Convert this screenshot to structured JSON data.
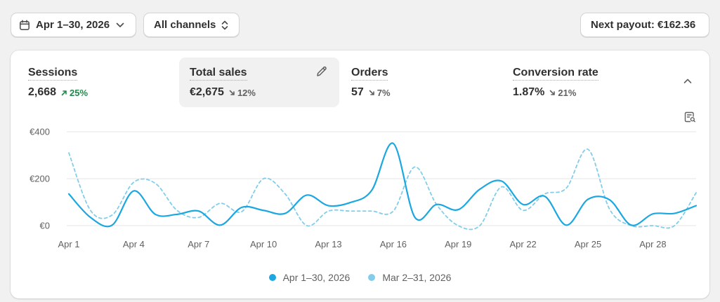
{
  "filters": {
    "date_range": "Apr 1–30, 2026",
    "channel": "All channels",
    "payout": "Next payout: €162.36"
  },
  "metrics": [
    {
      "title": "Sessions",
      "value": "2,668",
      "change": "25%",
      "direction": "up"
    },
    {
      "title": "Total sales",
      "value": "€2,675",
      "change": "12%",
      "direction": "down",
      "selected": true
    },
    {
      "title": "Orders",
      "value": "57",
      "change": "7%",
      "direction": "down"
    },
    {
      "title": "Conversion rate",
      "value": "1.87%",
      "change": "21%",
      "direction": "down"
    }
  ],
  "icons": {
    "date": "calendar-icon",
    "date_toggle": "chevron-down-icon",
    "channel_toggle": "select-arrows-icon",
    "edit": "pencil-icon",
    "collapse": "chevron-up-icon",
    "report": "report-search-icon"
  },
  "colors": {
    "current": "#1ba7e0",
    "previous": "#82cdea",
    "up": "#1f8a4c",
    "down": "#616161"
  },
  "chart_data": {
    "type": "line",
    "x": [
      "Apr 1",
      "Apr 2",
      "Apr 3",
      "Apr 4",
      "Apr 5",
      "Apr 6",
      "Apr 7",
      "Apr 8",
      "Apr 9",
      "Apr 10",
      "Apr 11",
      "Apr 12",
      "Apr 13",
      "Apr 14",
      "Apr 15",
      "Apr 16",
      "Apr 17",
      "Apr 18",
      "Apr 19",
      "Apr 20",
      "Apr 21",
      "Apr 22",
      "Apr 23",
      "Apr 24",
      "Apr 25",
      "Apr 26",
      "Apr 27",
      "Apr 28",
      "Apr 29",
      "Apr 30"
    ],
    "x_tick_labels": [
      "Apr 1",
      "Apr 4",
      "Apr 7",
      "Apr 10",
      "Apr 13",
      "Apr 16",
      "Apr 19",
      "Apr 22",
      "Apr 25",
      "Apr 28"
    ],
    "y_tick_labels": [
      "€0",
      "€200",
      "€400"
    ],
    "ylim": [
      0,
      400
    ],
    "grid": true,
    "legend": "bottom-center",
    "series": [
      {
        "name": "Apr 1–30, 2026",
        "style": "solid",
        "values": [
          135,
          35,
          2,
          148,
          48,
          48,
          62,
          2,
          78,
          65,
          52,
          130,
          85,
          98,
          150,
          350,
          35,
          90,
          68,
          155,
          190,
          90,
          125,
          2,
          112,
          110,
          2,
          50,
          52,
          85
        ]
      },
      {
        "name": "Mar 2–31, 2026",
        "style": "dashed",
        "values": [
          310,
          65,
          45,
          185,
          180,
          65,
          35,
          95,
          60,
          200,
          135,
          0,
          62,
          62,
          62,
          62,
          250,
          90,
          0,
          0,
          165,
          65,
          135,
          160,
          325,
          70,
          0,
          0,
          0,
          140
        ]
      }
    ]
  }
}
